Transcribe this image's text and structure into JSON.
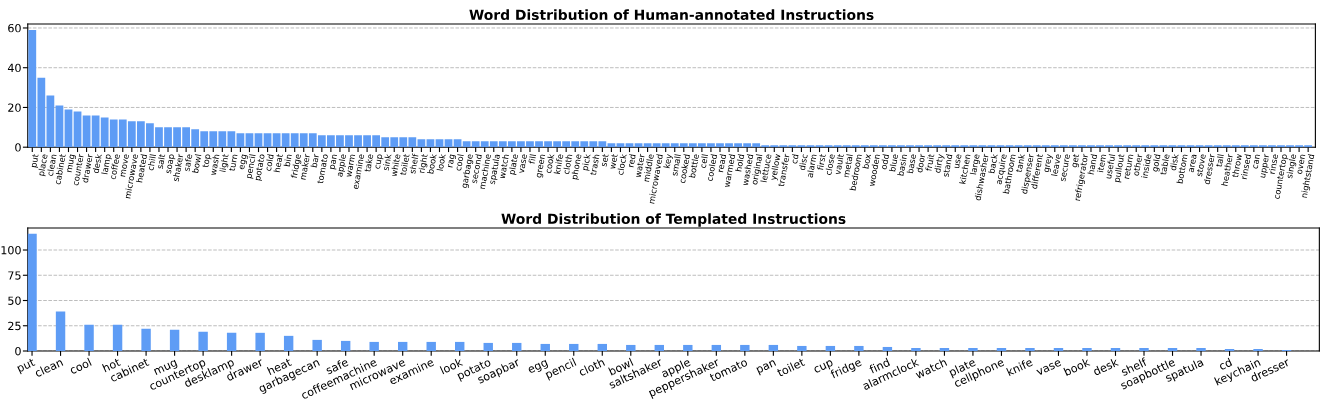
{
  "chart_data": [
    {
      "type": "bar",
      "title": "Word Distribution of Human-annotated Instructions",
      "color": "#5e9cf5",
      "grid": "y",
      "ylim": [
        0,
        62
      ],
      "yticks": [
        0,
        20,
        40,
        60
      ],
      "categories": [
        "put",
        "place",
        "clean",
        "cabinet",
        "mug",
        "counter",
        "drawer",
        "desk",
        "lamp",
        "coffee",
        "move",
        "microwave",
        "heated",
        "chill",
        "salt",
        "soap",
        "shaker",
        "safe",
        "bowl",
        "top",
        "wash",
        "light",
        "turn",
        "egg",
        "pencil",
        "potato",
        "cold",
        "heat",
        "bin",
        "fridge",
        "maker",
        "bar",
        "tomato",
        "pan",
        "apple",
        "warm",
        "examine",
        "take",
        "cup",
        "sink",
        "white",
        "toilet",
        "shelf",
        "right",
        "book",
        "look",
        "rag",
        "cool",
        "garbage",
        "second",
        "machine",
        "spatula",
        "watch",
        "plate",
        "vase",
        "fill",
        "green",
        "cook",
        "knife",
        "cloth",
        "phone",
        "pick",
        "trash",
        "set",
        "wet",
        "clock",
        "red",
        "water",
        "middle",
        "microwaved",
        "key",
        "small",
        "cooked",
        "bottle",
        "cell",
        "cooled",
        "read",
        "warmed",
        "hold",
        "washed",
        "original",
        "lettuce",
        "yellow",
        "transfer",
        "cd",
        "disc",
        "alarm",
        "first",
        "close",
        "vault",
        "metal",
        "bedroom",
        "box",
        "wooden",
        "odd",
        "blue",
        "basin",
        "base",
        "door",
        "fruit",
        "dirty",
        "stand",
        "use",
        "kitchen",
        "large",
        "dishwasher",
        "back",
        "acquire",
        "bathroom",
        "tank",
        "dispenser",
        "different",
        "grey",
        "leave",
        "secure",
        "get",
        "refrigerator",
        "hand",
        "item",
        "useful",
        "pullout",
        "return",
        "other",
        "inside",
        "gold",
        "table",
        "disk",
        "bottom",
        "area",
        "stove",
        "dresser",
        "tall",
        "heather",
        "throw",
        "rinsed",
        "can",
        "upper",
        "rinse",
        "countertop",
        "single",
        "oven",
        "nightstand"
      ],
      "values": [
        59,
        35,
        26,
        21,
        19,
        18,
        16,
        16,
        15,
        14,
        14,
        13,
        13,
        12,
        10,
        10,
        10,
        10,
        9,
        8,
        8,
        8,
        8,
        7,
        7,
        7,
        7,
        7,
        7,
        7,
        7,
        7,
        6,
        6,
        6,
        6,
        6,
        6,
        6,
        5,
        5,
        5,
        5,
        4,
        4,
        4,
        4,
        4,
        3,
        3,
        3,
        3,
        3,
        3,
        3,
        3,
        3,
        3,
        3,
        3,
        3,
        3,
        3,
        3,
        2,
        2,
        2,
        2,
        2,
        2,
        2,
        2,
        2,
        2,
        2,
        2,
        2,
        2,
        2,
        2,
        2,
        1,
        1,
        1,
        1,
        1,
        1,
        1,
        1,
        1,
        1,
        1,
        1,
        1,
        1,
        1,
        1,
        1,
        1,
        1,
        1,
        1,
        1,
        1,
        1,
        1,
        1,
        1,
        1,
        1,
        1,
        1,
        1,
        1,
        1,
        1,
        1,
        1,
        1,
        1,
        1,
        1,
        1,
        1,
        1,
        1,
        1,
        1,
        1,
        1,
        1,
        1,
        1,
        1,
        1,
        1,
        1,
        1,
        1,
        1,
        1,
        1
      ]
    },
    {
      "type": "bar",
      "title": "Word Distribution of Templated Instructions",
      "color": "#5e9cf5",
      "grid": "y",
      "ylim": [
        0,
        121.8
      ],
      "yticks": [
        0,
        25,
        50,
        75,
        100
      ],
      "categories": [
        "put",
        "clean",
        "cool",
        "hot",
        "cabinet",
        "mug",
        "countertop",
        "desklamp",
        "drawer",
        "heat",
        "garbagecan",
        "safe",
        "coffeemachine",
        "microwave",
        "examine",
        "look",
        "potato",
        "soapbar",
        "egg",
        "pencil",
        "cloth",
        "bowl",
        "saltshaker",
        "apple",
        "peppershaker",
        "tomato",
        "pan",
        "toilet",
        "cup",
        "fridge",
        "find",
        "alarmclock",
        "watch",
        "plate",
        "cellphone",
        "knife",
        "vase",
        "book",
        "desk",
        "shelf",
        "soapbottle",
        "spatula",
        "cd",
        "keychain",
        "dresser"
      ],
      "values": [
        116,
        39,
        26,
        26,
        22,
        21,
        19,
        18,
        18,
        15,
        11,
        10,
        9,
        9,
        9,
        9,
        8,
        8,
        7,
        7,
        7,
        6,
        6,
        6,
        6,
        6,
        6,
        5,
        5,
        5,
        4,
        3,
        3,
        3,
        3,
        3,
        3,
        3,
        3,
        3,
        3,
        3,
        2,
        2,
        1
      ]
    }
  ]
}
